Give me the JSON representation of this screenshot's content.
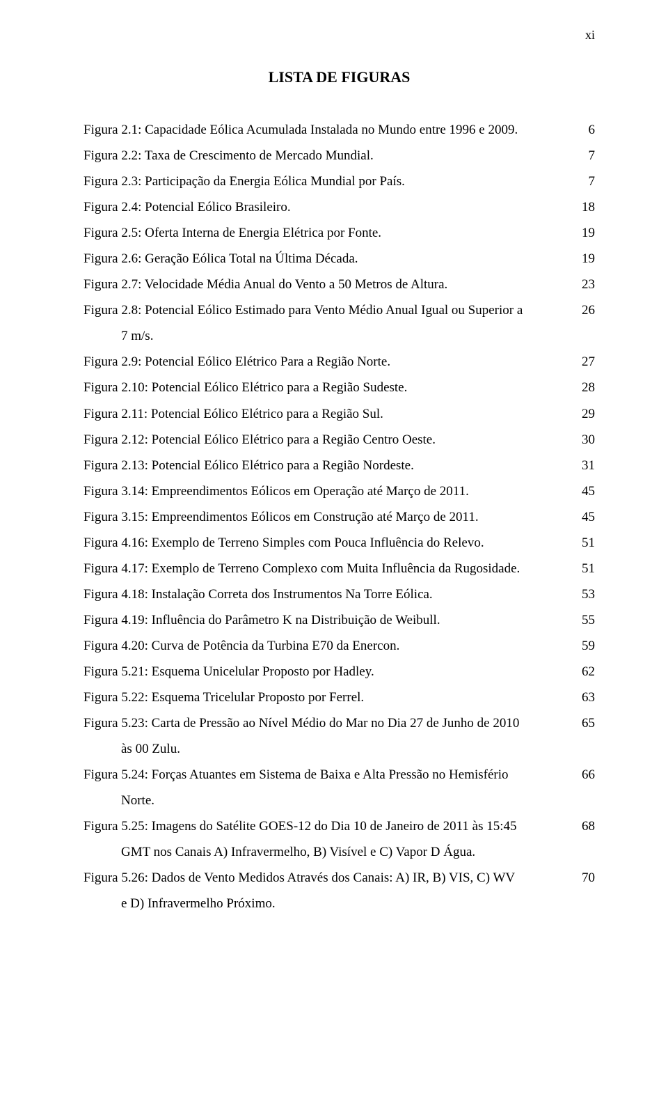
{
  "page_number": "xi",
  "title": "LISTA DE FIGURAS",
  "entries": [
    {
      "label": "Figura 2.1: Capacidade Eólica Acumulada Instalada no Mundo entre 1996 e 2009.",
      "page": "6"
    },
    {
      "label": "Figura 2.2: Taxa de Crescimento de Mercado Mundial.",
      "page": "7"
    },
    {
      "label": "Figura 2.3: Participação da Energia Eólica Mundial por País.",
      "page": "7"
    },
    {
      "label": "Figura 2.4: Potencial Eólico Brasileiro.",
      "page": "18"
    },
    {
      "label": "Figura 2.5: Oferta Interna de Energia Elétrica por Fonte.",
      "page": "19"
    },
    {
      "label": "Figura 2.6: Geração Eólica Total na Última Década.",
      "page": "19"
    },
    {
      "label": "Figura 2.7: Velocidade Média Anual do Vento a 50 Metros de Altura.",
      "page": "23"
    },
    {
      "label": "Figura 2.8: Potencial Eólico Estimado para Vento Médio Anual Igual ou Superior a",
      "page": "26",
      "cont": "7 m/s."
    },
    {
      "label": "Figura 2.9: Potencial Eólico Elétrico Para a Região Norte.",
      "page": "27"
    },
    {
      "label": "Figura 2.10: Potencial Eólico Elétrico para a Região Sudeste.",
      "page": "28"
    },
    {
      "label": "Figura 2.11: Potencial Eólico Elétrico para a Região Sul.",
      "page": "29"
    },
    {
      "label": "Figura 2.12: Potencial Eólico Elétrico para a Região Centro Oeste.",
      "page": "30"
    },
    {
      "label": "Figura 2.13: Potencial Eólico Elétrico para a Região Nordeste.",
      "page": "31"
    },
    {
      "label": "Figura 3.14: Empreendimentos Eólicos em Operação até Março de 2011.",
      "page": "45"
    },
    {
      "label": "Figura 3.15: Empreendimentos Eólicos em Construção até Março de 2011.",
      "page": "45"
    },
    {
      "label": "Figura 4.16: Exemplo de Terreno Simples com Pouca Influência do Relevo.",
      "page": "51"
    },
    {
      "label": "Figura 4.17: Exemplo de Terreno Complexo com Muita Influência da Rugosidade.",
      "page": "51"
    },
    {
      "label": "Figura 4.18: Instalação Correta dos Instrumentos Na Torre Eólica.",
      "page": "53"
    },
    {
      "label": "Figura 4.19: Influência do Parâmetro K na Distribuição de Weibull.",
      "page": "55"
    },
    {
      "label": "Figura 4.20: Curva de Potência da Turbina E70 da Enercon.",
      "page": "59"
    },
    {
      "label": "Figura 5.21: Esquema Unicelular Proposto por Hadley.",
      "page": "62"
    },
    {
      "label": "Figura 5.22: Esquema Tricelular Proposto por Ferrel.",
      "page": "63"
    },
    {
      "label": "Figura 5.23: Carta de Pressão ao Nível Médio do Mar no Dia 27 de Junho de 2010",
      "page": "65",
      "cont": "às 00 Zulu."
    },
    {
      "label": "Figura 5.24: Forças Atuantes em Sistema de Baixa e Alta Pressão no Hemisfério",
      "page": "66",
      "cont": "Norte."
    },
    {
      "label": "Figura 5.25: Imagens do Satélite GOES-12 do Dia 10 de Janeiro de 2011 às 15:45",
      "page": "68",
      "cont": "GMT nos Canais A) Infravermelho, B) Visível e C) Vapor D Água."
    },
    {
      "label": "Figura 5.26: Dados de Vento Medidos Através dos Canais:  A) IR, B) VIS, C) WV",
      "page": "70",
      "cont": "e D) Infravermelho Próximo."
    }
  ]
}
